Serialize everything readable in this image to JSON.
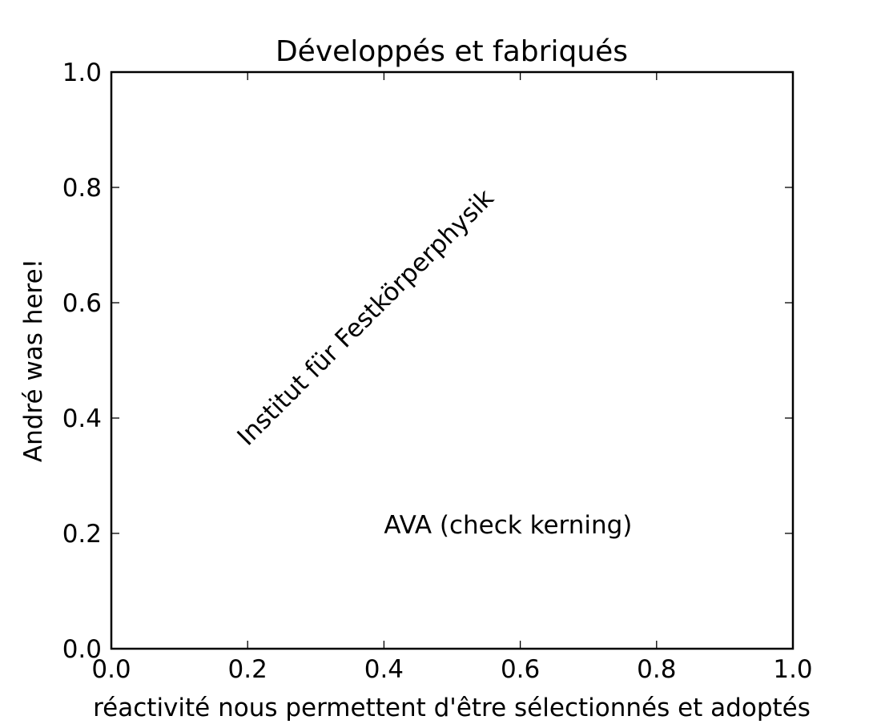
{
  "chart_data": {
    "type": "scatter",
    "title": "Développés et fabriqués",
    "xlabel": "réactivité nous permettent d'être sélectionnés et adoptés",
    "ylabel": "André was here!",
    "xlim": [
      0.0,
      1.0
    ],
    "ylim": [
      0.0,
      1.0
    ],
    "xticks": [
      0.0,
      0.2,
      0.4,
      0.6,
      0.8,
      1.0
    ],
    "yticks": [
      0.0,
      0.2,
      0.4,
      0.6,
      0.8,
      1.0
    ],
    "xtick_labels": [
      "0.0",
      "0.2",
      "0.4",
      "0.6",
      "0.8",
      "1.0"
    ],
    "ytick_labels": [
      "0.0",
      "0.2",
      "0.4",
      "0.6",
      "0.8",
      "1.0"
    ],
    "grid": false,
    "series": [],
    "annotations": [
      {
        "text": "Institut für Festkörperphysik",
        "x": 0.2,
        "y": 0.35,
        "rotation": 45
      },
      {
        "text": "AVA (check kerning)",
        "x": 0.4,
        "y": 0.2,
        "rotation": 0
      }
    ]
  }
}
